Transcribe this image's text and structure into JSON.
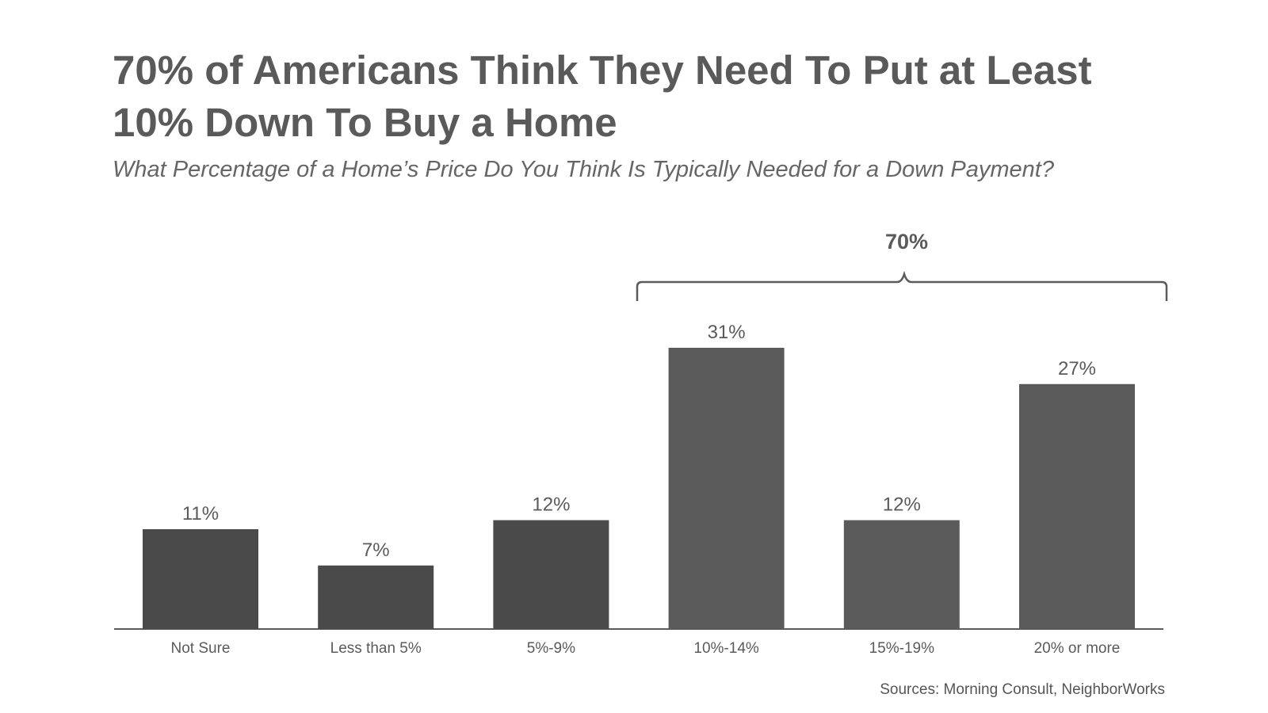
{
  "title_line1": "70% of Americans Think They Need To Put at Least",
  "title_line2": "10% Down To Buy a Home",
  "subtitle": "What Percentage of a Home’s Price Do You Think Is Typically Needed for a Down Payment?",
  "source": "Sources: Morning Consult, NeighborWorks",
  "colors": {
    "bar_dark": "#4a4a4a",
    "bar_mid": "#5a5a5a",
    "text": "#5a5a5a"
  },
  "chart_data": {
    "type": "bar",
    "categories": [
      "Not Sure",
      "Less than 5%",
      "5%-9%",
      "10%-14%",
      "15%-19%",
      "20% or more"
    ],
    "values": [
      11,
      7,
      12,
      31,
      12,
      27
    ],
    "value_labels": [
      "11%",
      "7%",
      "12%",
      "31%",
      "12%",
      "27%"
    ],
    "title": "70% of Americans Think They Need To Put at Least 10% Down To Buy a Home",
    "subtitle": "What Percentage of a Home’s Price Do You Think Is Typically Needed for a Down Payment?",
    "xlabel": "",
    "ylabel": "",
    "ylim": [
      0,
      31
    ],
    "grid": false,
    "legend": "none",
    "annotation": {
      "text": "70%",
      "spans": [
        "10%-14%",
        "15%-19%",
        "20% or more"
      ]
    }
  }
}
